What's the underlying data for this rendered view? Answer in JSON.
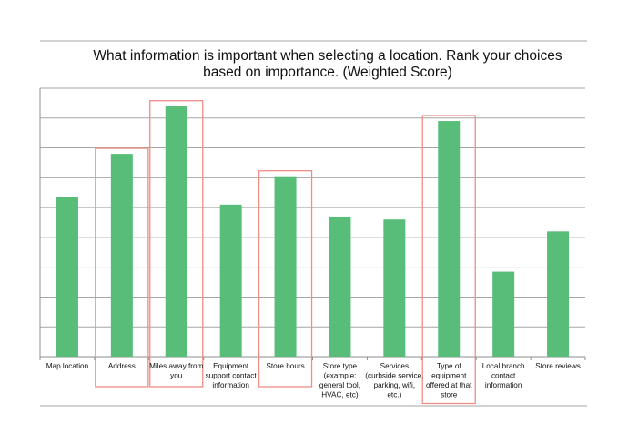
{
  "chart_data": {
    "type": "bar",
    "title": "What information is important when selecting a location. Rank your choices based on importance. (Weighted Score)",
    "title_lines": [
      "What information is important when selecting a location. Rank your choices",
      "based on importance. (Weighted Score)"
    ],
    "categories": [
      "Map location",
      "Address",
      "Miles away from you",
      "Equipment support contact information",
      "Store hours",
      "Store type (example: general tool, HVAC, etc)",
      "Services (curbside service, parking, wifi, etc.)",
      "Type of equipment offered at that store",
      "Local branch contact information",
      "Store reviews"
    ],
    "category_label_lines": [
      [
        "Map location"
      ],
      [
        "Address"
      ],
      [
        "Miles away from",
        "you"
      ],
      [
        "Equipment",
        "support contact",
        "information"
      ],
      [
        "Store hours"
      ],
      [
        "Store type",
        "(example:",
        "general tool,",
        "HVAC, etc)"
      ],
      [
        "Services",
        "(curbside service,",
        "parking, wifi,",
        "etc.)"
      ],
      [
        "Type of",
        "equipment",
        "offered at that",
        "store"
      ],
      [
        "Local branch",
        "contact",
        "information"
      ],
      [
        "Store reviews"
      ]
    ],
    "values": [
      5.35,
      6.8,
      8.4,
      5.1,
      6.05,
      4.7,
      4.6,
      7.9,
      2.85,
      4.2
    ],
    "ylim": [
      0,
      9
    ],
    "grid": true,
    "highlighted_categories": [
      "Address",
      "Miles away from you",
      "Store hours",
      "Type of equipment offered at that store"
    ],
    "colors": {
      "bar": "#57bd78",
      "grid": "#a6a6a6",
      "highlight": "#ef8d86",
      "axis": "#8c8c8c"
    }
  }
}
